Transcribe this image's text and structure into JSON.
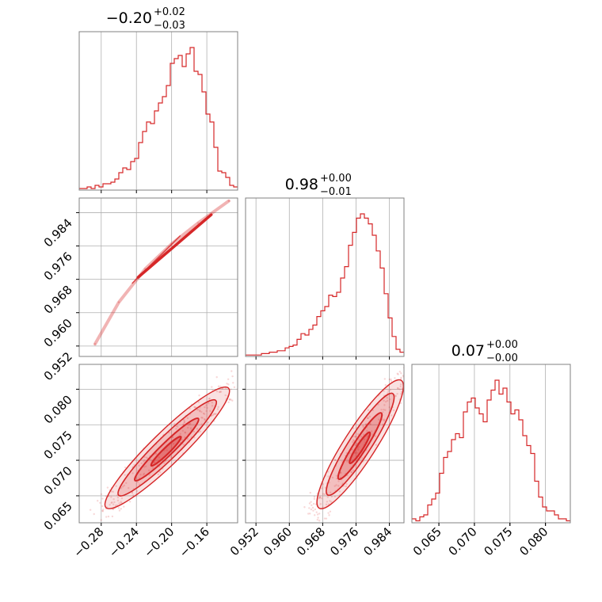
{
  "chart_data": {
    "type": "corner",
    "color": "#d62728",
    "grid": true,
    "parameters": [
      {
        "title": {
          "value": "−0.20",
          "plus": "+0.02",
          "minus": "−0.03"
        },
        "range": [
          -0.305,
          -0.125
        ],
        "ticks": [
          -0.28,
          -0.24,
          -0.2,
          -0.16
        ],
        "tick_labels": [
          "−0.28",
          "−0.24",
          "−0.20",
          "−0.16"
        ],
        "histogram": [
          0.01,
          0.01,
          0.02,
          0.01,
          0.03,
          0.02,
          0.04,
          0.04,
          0.05,
          0.07,
          0.11,
          0.14,
          0.13,
          0.18,
          0.2,
          0.3,
          0.37,
          0.43,
          0.42,
          0.5,
          0.55,
          0.59,
          0.66,
          0.8,
          0.83,
          0.85,
          0.78,
          0.86,
          0.9,
          0.75,
          0.73,
          0.62,
          0.48,
          0.43,
          0.27,
          0.12,
          0.11,
          0.08,
          0.03,
          0.02
        ]
      },
      {
        "title": {
          "value": "0.98",
          "plus": "+0.00",
          "minus": "−0.01"
        },
        "range": [
          0.9495,
          0.9875
        ],
        "ticks": [
          0.952,
          0.96,
          0.968,
          0.976,
          0.984
        ],
        "tick_labels": [
          "0.952",
          "0.960",
          "0.968",
          "0.976",
          "0.984"
        ],
        "histogram": [
          0.01,
          0.01,
          0.01,
          0.01,
          0.02,
          0.02,
          0.03,
          0.03,
          0.04,
          0.04,
          0.06,
          0.07,
          0.08,
          0.12,
          0.16,
          0.15,
          0.19,
          0.22,
          0.28,
          0.32,
          0.35,
          0.43,
          0.42,
          0.45,
          0.55,
          0.63,
          0.78,
          0.87,
          0.97,
          1.0,
          0.97,
          0.93,
          0.85,
          0.74,
          0.62,
          0.44,
          0.27,
          0.14,
          0.05,
          0.03
        ]
      },
      {
        "title": {
          "value": "0.07",
          "plus": "+0.00",
          "minus": "−0.00"
        },
        "range": [
          0.0612,
          0.0835
        ],
        "ticks": [
          0.065,
          0.07,
          0.075,
          0.08
        ],
        "tick_labels": [
          "0.065",
          "0.070",
          "0.075",
          "0.080"
        ],
        "histogram": [
          0.02,
          0.01,
          0.03,
          0.04,
          0.09,
          0.12,
          0.15,
          0.25,
          0.33,
          0.36,
          0.42,
          0.45,
          0.43,
          0.56,
          0.61,
          0.63,
          0.58,
          0.55,
          0.51,
          0.62,
          0.67,
          0.72,
          0.65,
          0.68,
          0.61,
          0.55,
          0.57,
          0.52,
          0.44,
          0.39,
          0.35,
          0.21,
          0.13,
          0.08,
          0.06,
          0.06,
          0.04,
          0.02,
          0.02,
          0.01
        ]
      }
    ]
  }
}
